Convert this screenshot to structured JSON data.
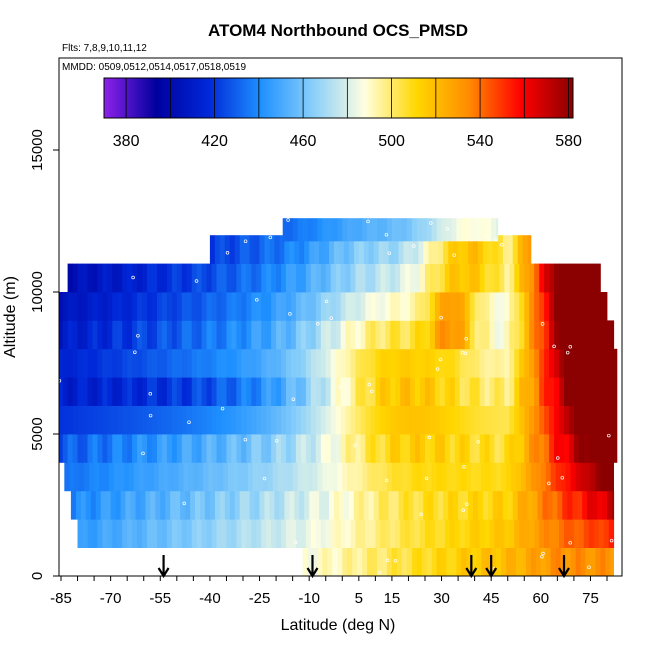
{
  "chart_data": {
    "type": "heatmap",
    "title": "ATOM4 Northbound OCS_PMSD",
    "subtitle_flights": "Flts: 7,8,9,10,11,12",
    "subtitle_dates": "MMDD: 0509,0512,0514,0517,0518,0519",
    "xlabel": "Latitude (deg N)",
    "ylabel": "Altitude (m)",
    "xlim": [
      -88,
      90
    ],
    "ylim": [
      0,
      17500
    ],
    "x_ticks": [
      -85,
      -70,
      -55,
      -40,
      -25,
      -10,
      5,
      15,
      30,
      45,
      60,
      75
    ],
    "x_ticks_labeled": [
      -85,
      -70,
      -55,
      -40,
      -25,
      -10,
      5,
      15,
      30,
      45,
      60,
      75
    ],
    "y_ticks": [
      0,
      5000,
      10000,
      15000
    ],
    "colorbar": {
      "min": 370,
      "max": 582,
      "ticks": [
        380,
        420,
        460,
        500,
        540,
        580
      ],
      "colors": [
        "#8e22ea",
        "#00009e",
        "#0028d8",
        "#1e90ff",
        "#87cefa",
        "#ffffe0",
        "#ffd700",
        "#ff8c00",
        "#ff0000",
        "#8b0000"
      ]
    },
    "flight_markers_lat": [
      -54,
      -9,
      39,
      45,
      67
    ],
    "profile_layers": [
      {
        "alt": 500,
        "lat_min": -12,
        "lat_max": 82
      },
      {
        "alt": 1500,
        "lat_min": -80,
        "lat_max": 82
      },
      {
        "alt": 2500,
        "lat_min": -82,
        "lat_max": 82
      },
      {
        "alt": 3500,
        "lat_min": -84,
        "lat_max": 82
      },
      {
        "alt": 4500,
        "lat_min": -86,
        "lat_max": 83
      },
      {
        "alt": 5500,
        "lat_min": -86,
        "lat_max": 83
      },
      {
        "alt": 6500,
        "lat_min": -86,
        "lat_max": 83
      },
      {
        "alt": 7500,
        "lat_min": -86,
        "lat_max": 83
      },
      {
        "alt": 8500,
        "lat_min": -86,
        "lat_max": 82
      },
      {
        "alt": 9500,
        "lat_min": -86,
        "lat_max": 80
      },
      {
        "alt": 10500,
        "lat_min": -83,
        "lat_max": 78
      },
      {
        "alt": 11500,
        "lat_min": -40,
        "lat_max": 57
      },
      {
        "alt": 12300,
        "lat_min": -18,
        "lat_max": 47
      }
    ]
  }
}
